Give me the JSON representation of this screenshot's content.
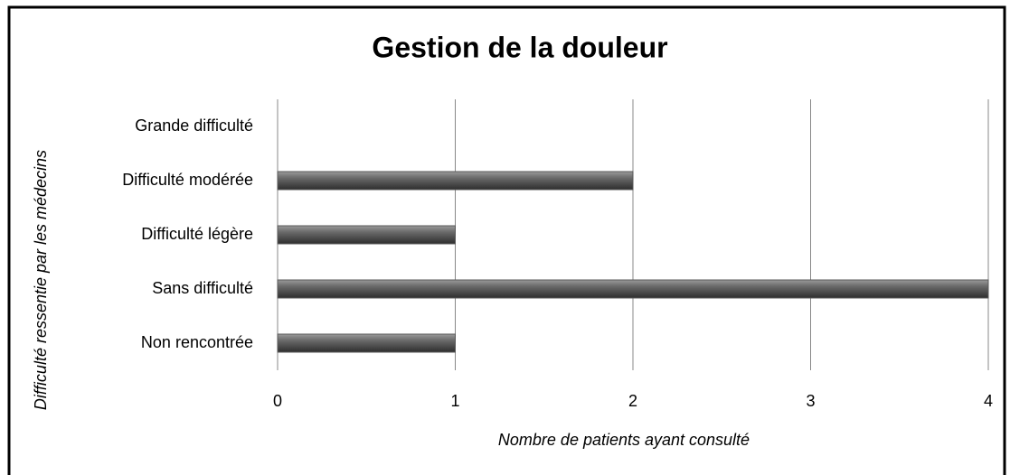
{
  "chart_data": {
    "type": "barh",
    "title": "Gestion de la douleur",
    "x_label": "Nombre de patients ayant consulté",
    "y_label": "Difficulté ressentie par les médecins",
    "categories": [
      "Grande difficulté",
      "Difficulté modérée",
      "Difficulté légère",
      "Sans difficulté",
      "Non rencontrée"
    ],
    "values": [
      0,
      2,
      1,
      4,
      1
    ],
    "color": "#595959",
    "xlim": [
      0,
      4
    ],
    "xticks": [
      0,
      1,
      2,
      3,
      4
    ],
    "grid": true
  }
}
